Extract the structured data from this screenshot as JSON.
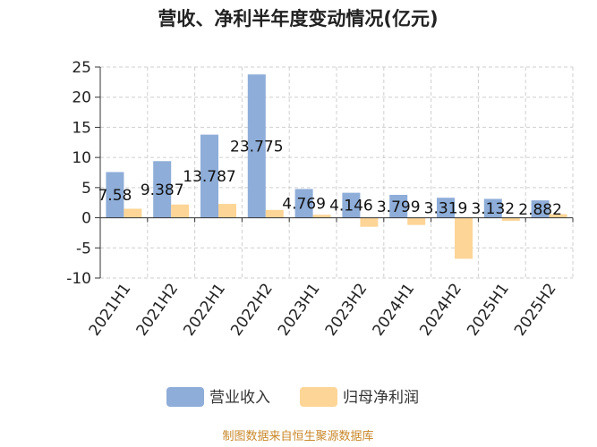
{
  "chart_data": {
    "type": "bar",
    "title": "营收、净利半年度变动情况(亿元)",
    "categories": [
      "2021H1",
      "2021H2",
      "2022H1",
      "2022H2",
      "2023H1",
      "2023H2",
      "2024H1",
      "2024H2",
      "2025H1",
      "2025H2"
    ],
    "series": [
      {
        "name": "营业收入",
        "color": "#8eadd8",
        "values": [
          7.58,
          9.387,
          13.787,
          23.775,
          4.769,
          4.146,
          3.799,
          3.319,
          3.132,
          2.882
        ]
      },
      {
        "name": "归母净利润",
        "color": "#fdd597",
        "values": [
          1.5,
          2.2,
          2.3,
          1.3,
          0.5,
          -1.5,
          -1.2,
          -6.8,
          -0.5,
          0.6
        ]
      }
    ],
    "data_labels": [
      "7.58",
      "9.387",
      "13.787",
      "23.775",
      "4.769",
      "4.146",
      "3.799",
      "3.319",
      "3.132",
      "2.882"
    ],
    "yticks": [
      25,
      20,
      15,
      10,
      5,
      0,
      -5,
      -10
    ],
    "ylim": [
      -10,
      25
    ],
    "grid": true,
    "legend_position": "bottom",
    "source": "制图数据来自恒生聚源数据库"
  }
}
